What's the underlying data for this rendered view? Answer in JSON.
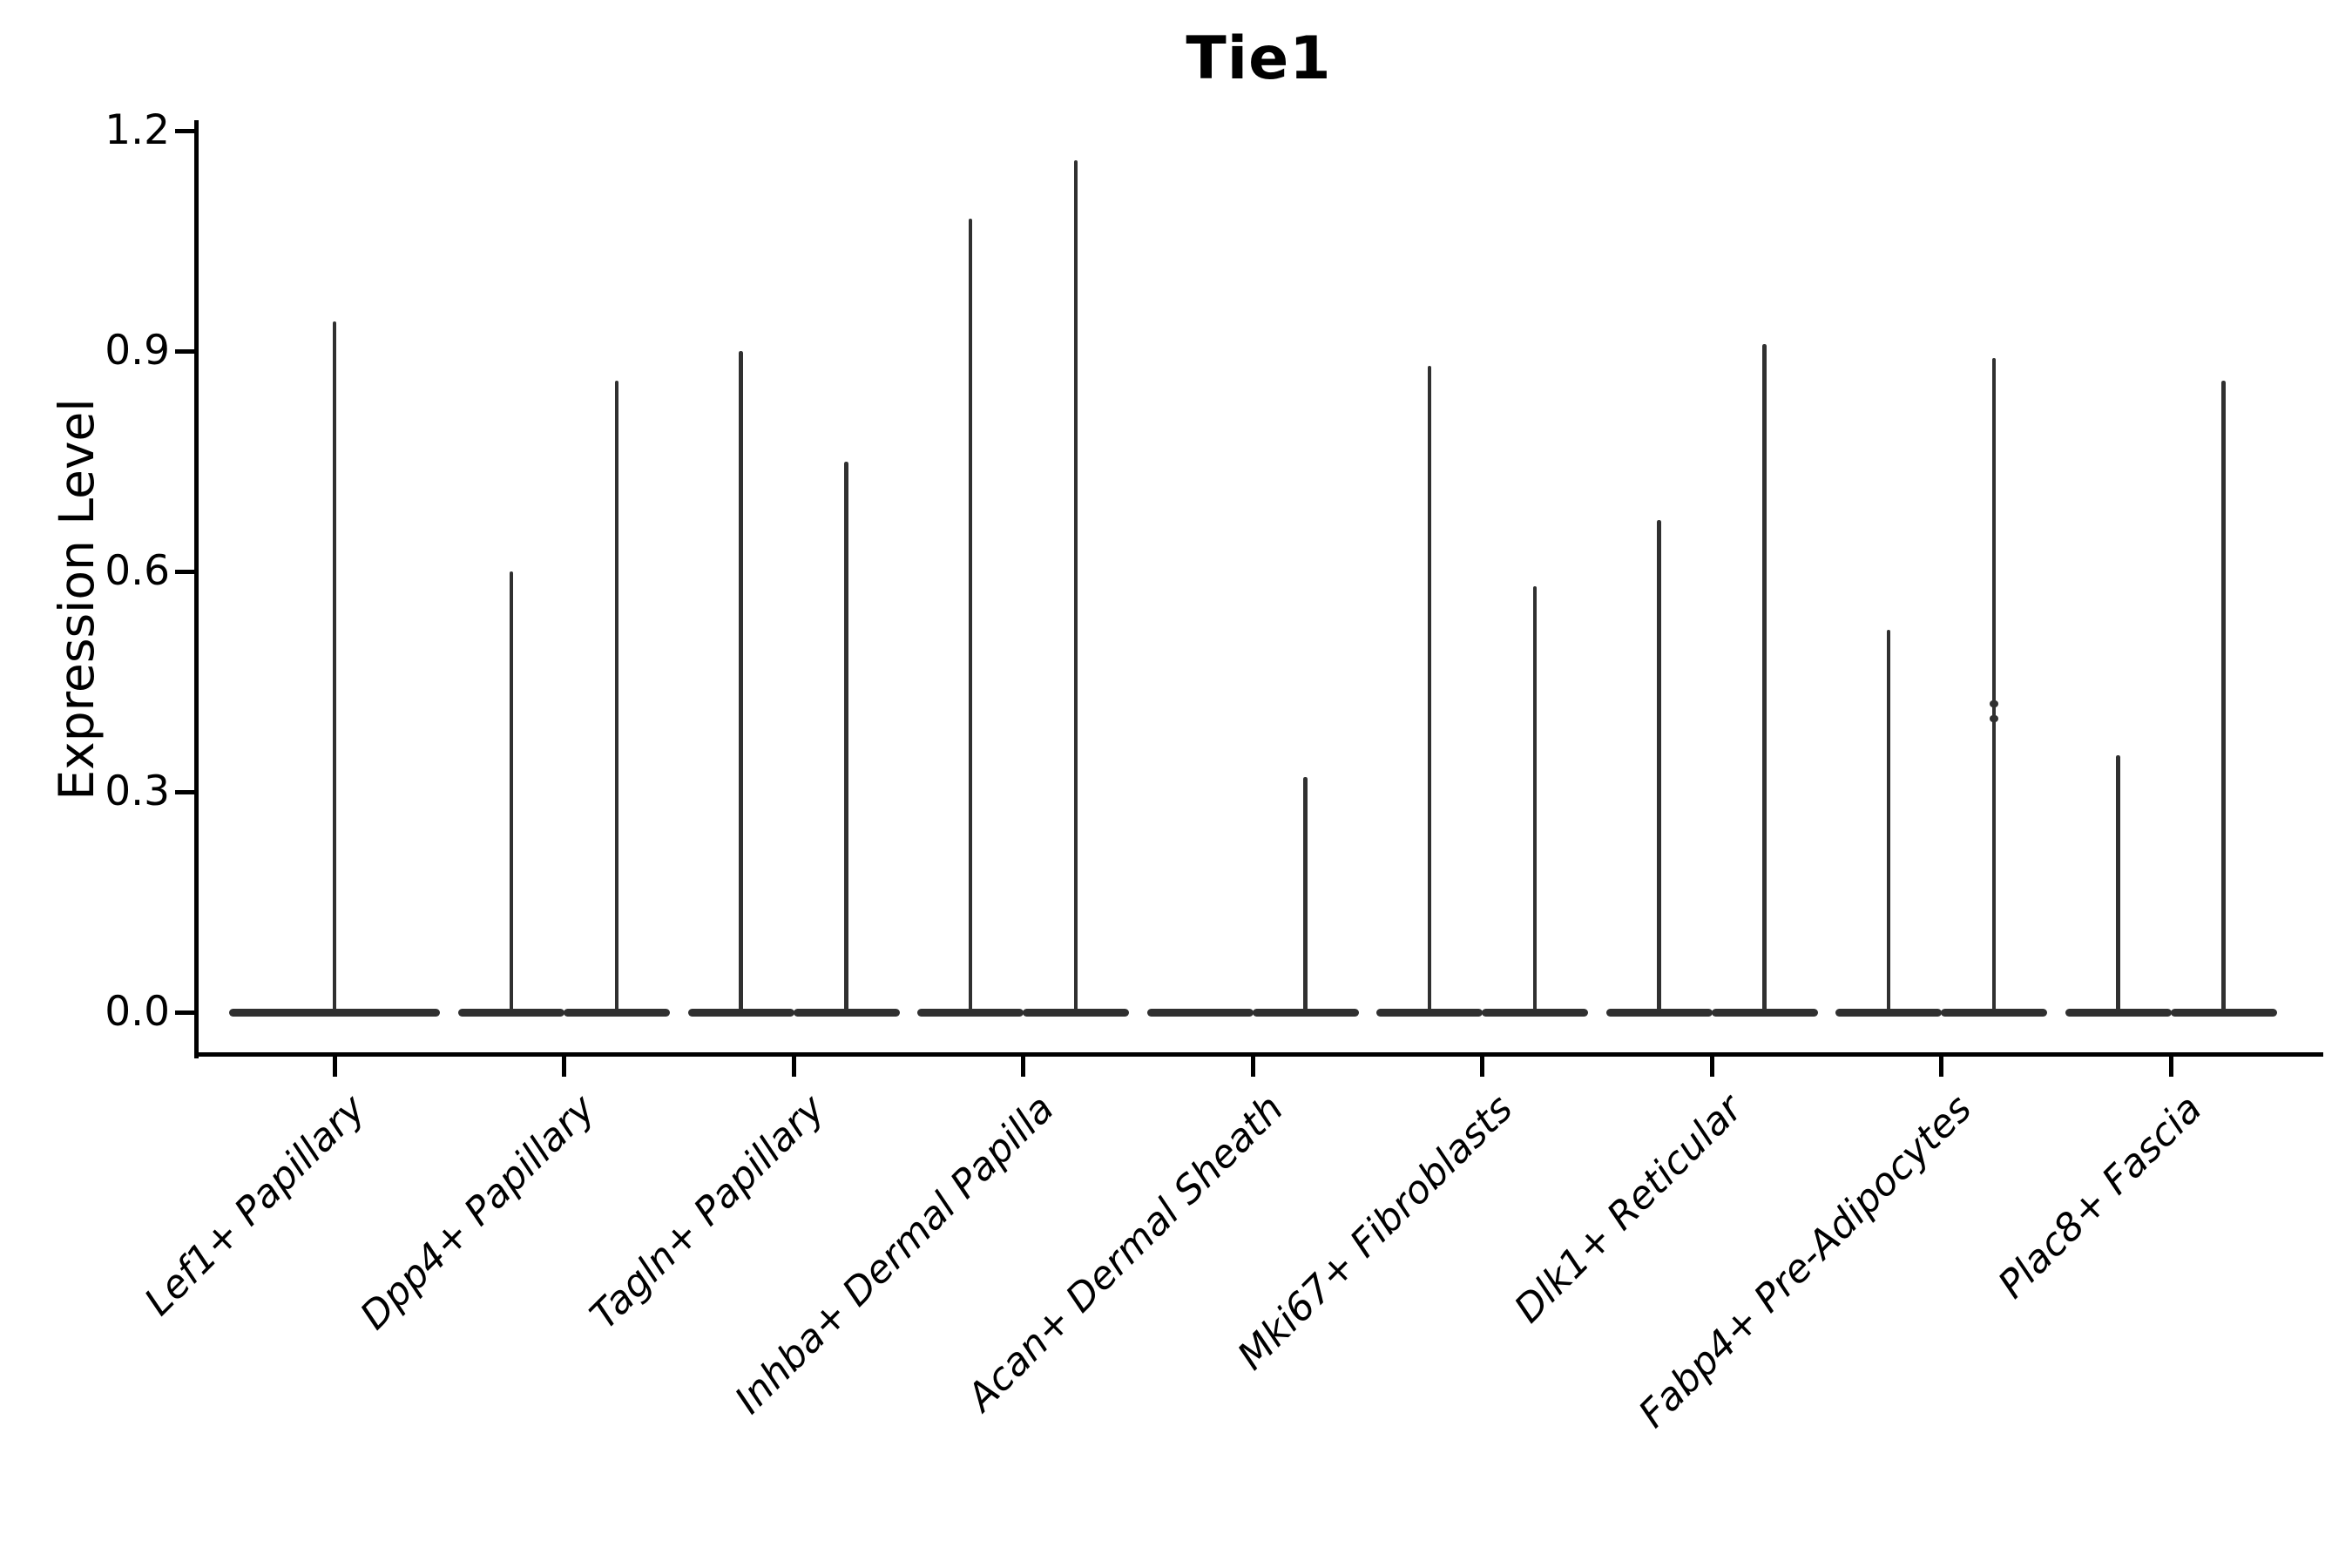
{
  "chart_data": {
    "type": "violin",
    "title": "Tie1",
    "ylabel": "Expression Level",
    "xlabel": "",
    "ylim": [
      0,
      1.2
    ],
    "yticks": [
      {
        "value": 0.0,
        "label": "0.0"
      },
      {
        "value": 0.3,
        "label": "0.3"
      },
      {
        "value": 0.6,
        "label": "0.6"
      },
      {
        "value": 0.9,
        "label": "0.9"
      },
      {
        "value": 1.2,
        "label": "1.2"
      }
    ],
    "grid": false,
    "legend": "none",
    "categories": [
      "Lef1+ Papillary",
      "Dpp4+ Papillary",
      "Tagln+ Papillary",
      "Inhba+ Dermal Papilla",
      "Acan+ Dermal Sheath",
      "Mki67+ Fibroblasts",
      "Dlk1+ Reticular",
      "Fabp4+ Pre-Adipocytes",
      "Plac8+ Fascia"
    ],
    "description": "Expression of Tie1 across fibroblast subtypes; each violin is a flat density mass at 0 expression with thin vertical tails reaching the maximum expression value",
    "violins": [
      {
        "category": "Lef1+ Papillary",
        "tails": [
          {
            "pos": "center",
            "max": 0.94
          }
        ]
      },
      {
        "category": "Dpp4+ Papillary",
        "tails": [
          {
            "pos": "left",
            "max": 0.6
          },
          {
            "pos": "right",
            "max": 0.86
          }
        ]
      },
      {
        "category": "Tagln+ Papillary",
        "tails": [
          {
            "pos": "left",
            "max": 0.9
          },
          {
            "pos": "right",
            "max": 0.75
          }
        ]
      },
      {
        "category": "Inhba+ Dermal Papilla",
        "tails": [
          {
            "pos": "left",
            "max": 1.08
          },
          {
            "pos": "right",
            "max": 1.16
          }
        ]
      },
      {
        "category": "Acan+ Dermal Sheath",
        "tails": [
          {
            "pos": "left",
            "max": 0.0
          },
          {
            "pos": "right",
            "max": 0.32
          }
        ]
      },
      {
        "category": "Mki67+ Fibroblasts",
        "tails": [
          {
            "pos": "left",
            "max": 0.88
          },
          {
            "pos": "right",
            "max": 0.58
          }
        ]
      },
      {
        "category": "Dlk1+ Reticular",
        "tails": [
          {
            "pos": "left",
            "max": 0.67
          },
          {
            "pos": "right",
            "max": 0.91
          }
        ]
      },
      {
        "category": "Fabp4+ Pre-Adipocytes",
        "tails": [
          {
            "pos": "left",
            "max": 0.52
          },
          {
            "pos": "right",
            "max": 0.89
          }
        ],
        "outlier_dots": {
          "pos": "right",
          "values": [
            0.4,
            0.42
          ]
        }
      },
      {
        "category": "Plac8+ Fascia",
        "tails": [
          {
            "pos": "left",
            "max": 0.35
          },
          {
            "pos": "right",
            "max": 0.86
          }
        ]
      }
    ],
    "colors": {
      "ink": "#000000",
      "violin": "#303030",
      "background": "#ffffff"
    }
  }
}
